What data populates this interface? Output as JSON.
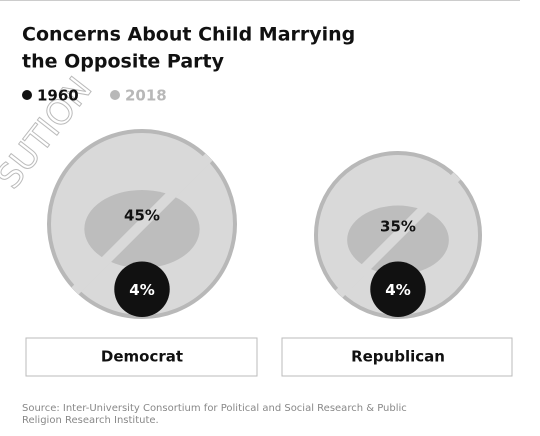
{
  "chart_data": {
    "type": "bubble",
    "title": [
      "Concerns About Child Marrying",
      "the Opposite Party"
    ],
    "watermark": "SUTION",
    "categories": [
      "Democrat",
      "Republican"
    ],
    "series": [
      {
        "name": "1960",
        "color": "#111111",
        "values": [
          4,
          4
        ],
        "value_labels": [
          "4%",
          "4%"
        ]
      },
      {
        "name": "2018",
        "color": "#b8b8b8",
        "values": [
          45,
          35
        ],
        "value_labels": [
          "45%",
          "35%"
        ]
      }
    ],
    "source": [
      "Source: Inter-University Consortium for Political and Social Research & Public",
      "Religion Research Institute."
    ]
  }
}
